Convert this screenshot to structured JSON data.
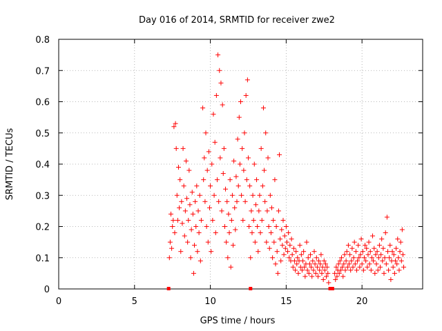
{
  "chart_data": {
    "type": "scatter",
    "title": "Day 016 of 2014, SRMTID for receiver zwe2",
    "xlabel": "GPS time / hours",
    "ylabel": "SRMTID / TECUs",
    "xlim": [
      0,
      24
    ],
    "ylim": [
      0,
      0.8
    ],
    "xticks": [
      0,
      5,
      10,
      15,
      20
    ],
    "yticks": [
      0,
      0.1,
      0.2,
      0.3,
      0.4,
      0.5,
      0.6,
      0.7,
      0.8
    ],
    "xtick_labels": [
      "0",
      "5",
      "10",
      "15",
      "20"
    ],
    "ytick_labels": [
      "0",
      "0.1",
      "0.2",
      "0.3",
      "0.4",
      "0.5",
      "0.6",
      "0.7",
      "0.8"
    ],
    "grid": true,
    "marker": "+",
    "color": "#ff0000",
    "series": [
      {
        "name": "SRMTID",
        "points": [
          [
            7.3,
            0.1
          ],
          [
            7.35,
            0.15
          ],
          [
            7.4,
            0.24
          ],
          [
            7.45,
            0.13
          ],
          [
            7.5,
            0.2
          ],
          [
            7.55,
            0.22
          ],
          [
            7.6,
            0.52
          ],
          [
            7.65,
            0.18
          ],
          [
            7.7,
            0.53
          ],
          [
            7.75,
            0.45
          ],
          [
            7.8,
            0.3
          ],
          [
            7.85,
            0.22
          ],
          [
            7.9,
            0.39
          ],
          [
            7.95,
            0.26
          ],
          [
            8.0,
            0.35
          ],
          [
            8.05,
            0.12
          ],
          [
            8.1,
            0.28
          ],
          [
            8.15,
            0.21
          ],
          [
            8.2,
            0.45
          ],
          [
            8.25,
            0.33
          ],
          [
            8.3,
            0.17
          ],
          [
            8.35,
            0.25
          ],
          [
            8.4,
            0.41
          ],
          [
            8.45,
            0.29
          ],
          [
            8.5,
            0.15
          ],
          [
            8.55,
            0.22
          ],
          [
            8.6,
            0.38
          ],
          [
            8.65,
            0.27
          ],
          [
            8.7,
            0.1
          ],
          [
            8.75,
            0.19
          ],
          [
            8.8,
            0.31
          ],
          [
            8.85,
            0.24
          ],
          [
            8.9,
            0.05
          ],
          [
            8.95,
            0.14
          ],
          [
            9.0,
            0.28
          ],
          [
            9.05,
            0.2
          ],
          [
            9.1,
            0.33
          ],
          [
            9.15,
            0.12
          ],
          [
            9.2,
            0.25
          ],
          [
            9.25,
            0.18
          ],
          [
            9.3,
            0.3
          ],
          [
            9.35,
            0.09
          ],
          [
            9.4,
            0.22
          ],
          [
            9.5,
            0.58
          ],
          [
            9.55,
            0.35
          ],
          [
            9.6,
            0.42
          ],
          [
            9.65,
            0.28
          ],
          [
            9.7,
            0.5
          ],
          [
            9.75,
            0.2
          ],
          [
            9.8,
            0.38
          ],
          [
            9.85,
            0.15
          ],
          [
            9.9,
            0.44
          ],
          [
            9.95,
            0.26
          ],
          [
            10.0,
            0.33
          ],
          [
            10.05,
            0.12
          ],
          [
            10.1,
            0.4
          ],
          [
            10.15,
            0.22
          ],
          [
            10.2,
            0.56
          ],
          [
            10.25,
            0.3
          ],
          [
            10.3,
            0.47
          ],
          [
            10.35,
            0.18
          ],
          [
            10.4,
            0.62
          ],
          [
            10.45,
            0.35
          ],
          [
            10.5,
            0.75
          ],
          [
            10.55,
            0.28
          ],
          [
            10.6,
            0.7
          ],
          [
            10.65,
            0.42
          ],
          [
            10.7,
            0.66
          ],
          [
            10.75,
            0.25
          ],
          [
            10.8,
            0.59
          ],
          [
            10.85,
            0.37
          ],
          [
            10.9,
            0.45
          ],
          [
            10.95,
            0.2
          ],
          [
            11.0,
            0.32
          ],
          [
            11.05,
            0.15
          ],
          [
            11.1,
            0.28
          ],
          [
            11.15,
            0.1
          ],
          [
            11.2,
            0.24
          ],
          [
            11.25,
            0.18
          ],
          [
            11.3,
            0.35
          ],
          [
            11.35,
            0.07
          ],
          [
            11.4,
            0.22
          ],
          [
            11.45,
            0.3
          ],
          [
            11.5,
            0.14
          ],
          [
            11.55,
            0.41
          ],
          [
            11.6,
            0.26
          ],
          [
            11.65,
            0.19
          ],
          [
            11.7,
            0.36
          ],
          [
            11.75,
            0.28
          ],
          [
            11.8,
            0.48
          ],
          [
            11.85,
            0.33
          ],
          [
            11.9,
            0.55
          ],
          [
            11.95,
            0.4
          ],
          [
            12.0,
            0.6
          ],
          [
            12.05,
            0.3
          ],
          [
            12.1,
            0.45
          ],
          [
            12.15,
            0.22
          ],
          [
            12.2,
            0.38
          ],
          [
            12.25,
            0.5
          ],
          [
            12.3,
            0.28
          ],
          [
            12.35,
            0.62
          ],
          [
            12.4,
            0.35
          ],
          [
            12.45,
            0.67
          ],
          [
            12.5,
            0.42
          ],
          [
            12.55,
            0.2
          ],
          [
            12.6,
            0.33
          ],
          [
            12.65,
            0.1
          ],
          [
            12.7,
            0.25
          ],
          [
            12.75,
            0.18
          ],
          [
            12.8,
            0.3
          ],
          [
            12.85,
            0.22
          ],
          [
            12.9,
            0.4
          ],
          [
            12.95,
            0.15
          ],
          [
            13.0,
            0.27
          ],
          [
            13.05,
            0.35
          ],
          [
            13.1,
            0.2
          ],
          [
            13.15,
            0.12
          ],
          [
            13.2,
            0.25
          ],
          [
            13.25,
            0.3
          ],
          [
            13.3,
            0.18
          ],
          [
            13.35,
            0.45
          ],
          [
            13.4,
            0.22
          ],
          [
            13.45,
            0.33
          ],
          [
            13.5,
            0.58
          ],
          [
            13.55,
            0.38
          ],
          [
            13.6,
            0.28
          ],
          [
            13.65,
            0.5
          ],
          [
            13.7,
            0.15
          ],
          [
            13.75,
            0.25
          ],
          [
            13.8,
            0.42
          ],
          [
            13.85,
            0.2
          ],
          [
            13.9,
            0.13
          ],
          [
            13.95,
            0.3
          ],
          [
            14.0,
            0.18
          ],
          [
            14.05,
            0.26
          ],
          [
            14.1,
            0.1
          ],
          [
            14.15,
            0.22
          ],
          [
            14.2,
            0.15
          ],
          [
            14.25,
            0.35
          ],
          [
            14.3,
            0.08
          ],
          [
            14.35,
            0.2
          ],
          [
            14.4,
            0.12
          ],
          [
            14.45,
            0.05
          ],
          [
            14.5,
            0.25
          ],
          [
            14.55,
            0.43
          ],
          [
            14.6,
            0.16
          ],
          [
            14.65,
            0.09
          ],
          [
            14.7,
            0.19
          ],
          [
            14.75,
            0.14
          ],
          [
            14.8,
            0.22
          ],
          [
            14.85,
            0.11
          ],
          [
            14.9,
            0.17
          ],
          [
            14.95,
            0.13
          ],
          [
            15.0,
            0.2
          ],
          [
            15.05,
            0.15
          ],
          [
            15.1,
            0.12
          ],
          [
            15.15,
            0.18
          ],
          [
            15.2,
            0.1
          ],
          [
            15.25,
            0.14
          ],
          [
            15.3,
            0.09
          ],
          [
            15.35,
            0.16
          ],
          [
            15.4,
            0.11
          ],
          [
            15.45,
            0.07
          ],
          [
            15.5,
            0.13
          ],
          [
            15.55,
            0.09
          ],
          [
            15.6,
            0.06
          ],
          [
            15.65,
            0.12
          ],
          [
            15.7,
            0.08
          ],
          [
            15.75,
            0.1
          ],
          [
            15.8,
            0.05
          ],
          [
            15.85,
            0.09
          ],
          [
            15.9,
            0.14
          ],
          [
            15.95,
            0.07
          ],
          [
            16.0,
            0.11
          ],
          [
            16.05,
            0.06
          ],
          [
            16.1,
            0.09
          ],
          [
            16.15,
            0.12
          ],
          [
            16.2,
            0.07
          ],
          [
            16.25,
            0.04
          ],
          [
            16.3,
            0.08
          ],
          [
            16.35,
            0.15
          ],
          [
            16.4,
            0.06
          ],
          [
            16.45,
            0.1
          ],
          [
            16.5,
            0.05
          ],
          [
            16.55,
            0.08
          ],
          [
            16.6,
            0.11
          ],
          [
            16.65,
            0.07
          ],
          [
            16.7,
            0.04
          ],
          [
            16.75,
            0.09
          ],
          [
            16.8,
            0.06
          ],
          [
            16.85,
            0.12
          ],
          [
            16.9,
            0.08
          ],
          [
            16.95,
            0.05
          ],
          [
            17.0,
            0.1
          ],
          [
            17.05,
            0.07
          ],
          [
            17.1,
            0.04
          ],
          [
            17.15,
            0.09
          ],
          [
            17.2,
            0.06
          ],
          [
            17.25,
            0.08
          ],
          [
            17.3,
            0.11
          ],
          [
            17.35,
            0.05
          ],
          [
            17.4,
            0.07
          ],
          [
            17.45,
            0.03
          ],
          [
            17.5,
            0.09
          ],
          [
            17.55,
            0.06
          ],
          [
            17.6,
            0.08
          ],
          [
            17.65,
            0.04
          ],
          [
            17.7,
            0.07
          ],
          [
            17.75,
            0.05
          ],
          [
            17.8,
            0.02
          ],
          [
            18.2,
            0.05
          ],
          [
            18.25,
            0.03
          ],
          [
            18.3,
            0.07
          ],
          [
            18.35,
            0.04
          ],
          [
            18.4,
            0.06
          ],
          [
            18.45,
            0.08
          ],
          [
            18.5,
            0.05
          ],
          [
            18.55,
            0.09
          ],
          [
            18.6,
            0.06
          ],
          [
            18.65,
            0.1
          ],
          [
            18.7,
            0.07
          ],
          [
            18.75,
            0.04
          ],
          [
            18.8,
            0.08
          ],
          [
            18.85,
            0.11
          ],
          [
            18.9,
            0.06
          ],
          [
            18.95,
            0.09
          ],
          [
            19.0,
            0.12
          ],
          [
            19.05,
            0.07
          ],
          [
            19.1,
            0.14
          ],
          [
            19.15,
            0.08
          ],
          [
            19.2,
            0.11
          ],
          [
            19.25,
            0.06
          ],
          [
            19.3,
            0.09
          ],
          [
            19.35,
            0.13
          ],
          [
            19.4,
            0.07
          ],
          [
            19.45,
            0.1
          ],
          [
            19.5,
            0.15
          ],
          [
            19.55,
            0.08
          ],
          [
            19.6,
            0.12
          ],
          [
            19.65,
            0.06
          ],
          [
            19.7,
            0.09
          ],
          [
            19.75,
            0.14
          ],
          [
            19.8,
            0.1
          ],
          [
            19.85,
            0.07
          ],
          [
            19.9,
            0.11
          ],
          [
            19.95,
            0.16
          ],
          [
            20.0,
            0.08
          ],
          [
            20.05,
            0.12
          ],
          [
            20.1,
            0.06
          ],
          [
            20.15,
            0.1
          ],
          [
            20.2,
            0.14
          ],
          [
            20.25,
            0.09
          ],
          [
            20.3,
            0.13
          ],
          [
            20.35,
            0.07
          ],
          [
            20.4,
            0.11
          ],
          [
            20.45,
            0.15
          ],
          [
            20.5,
            0.08
          ],
          [
            20.55,
            0.12
          ],
          [
            20.6,
            0.06
          ],
          [
            20.65,
            0.1
          ],
          [
            20.7,
            0.17
          ],
          [
            20.75,
            0.09
          ],
          [
            20.8,
            0.13
          ],
          [
            20.85,
            0.05
          ],
          [
            20.9,
            0.11
          ],
          [
            20.95,
            0.08
          ],
          [
            21.0,
            0.12
          ],
          [
            21.05,
            0.06
          ],
          [
            21.1,
            0.1
          ],
          [
            21.15,
            0.14
          ],
          [
            21.2,
            0.07
          ],
          [
            21.25,
            0.11
          ],
          [
            21.3,
            0.16
          ],
          [
            21.35,
            0.09
          ],
          [
            21.4,
            0.13
          ],
          [
            21.45,
            0.05
          ],
          [
            21.5,
            0.1
          ],
          [
            21.55,
            0.18
          ],
          [
            21.6,
            0.08
          ],
          [
            21.65,
            0.23
          ],
          [
            21.7,
            0.12
          ],
          [
            21.75,
            0.06
          ],
          [
            21.8,
            0.1
          ],
          [
            21.85,
            0.14
          ],
          [
            21.9,
            0.03
          ],
          [
            21.95,
            0.09
          ],
          [
            22.0,
            0.12
          ],
          [
            22.05,
            0.07
          ],
          [
            22.1,
            0.11
          ],
          [
            22.15,
            0.05
          ],
          [
            22.2,
            0.09
          ],
          [
            22.25,
            0.13
          ],
          [
            22.3,
            0.08
          ],
          [
            22.35,
            0.16
          ],
          [
            22.4,
            0.1
          ],
          [
            22.45,
            0.06
          ],
          [
            22.5,
            0.12
          ],
          [
            22.55,
            0.15
          ],
          [
            22.6,
            0.09
          ],
          [
            22.65,
            0.19
          ],
          [
            22.7,
            0.11
          ],
          [
            22.75,
            0.07
          ]
        ]
      }
    ],
    "gap_markers": [
      7.25,
      12.65,
      17.9,
      18.05
    ]
  }
}
